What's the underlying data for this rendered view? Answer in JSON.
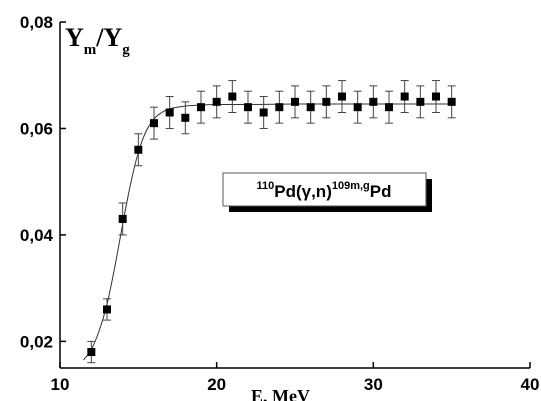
{
  "chart_data": {
    "type": "scatter",
    "title": "",
    "xlabel": "E, MeV",
    "ylabel": {
      "main": "Y",
      "sub_m": "m",
      "slash": "/",
      "main2": "Y",
      "sub_g": "g"
    },
    "xlim": [
      10,
      40
    ],
    "ylim": [
      0.015,
      0.08
    ],
    "x_ticks": [
      10,
      20,
      30,
      40
    ],
    "x_tick_labels": [
      "10",
      "20",
      "30",
      "40"
    ],
    "y_ticks": [
      0.02,
      0.04,
      0.06,
      0.08
    ],
    "y_tick_labels": [
      "0,02",
      "0,04",
      "0,06",
      "0,08"
    ],
    "grid": false,
    "annotation": {
      "mass_in": "110",
      "el_in": "Pd",
      "reaction": "(γ,n)",
      "mass_out": "109m,g",
      "el_out": "Pd"
    },
    "series": [
      {
        "marker": "square",
        "color": "#000000",
        "x": [
          12,
          13,
          14,
          15,
          16,
          17,
          18,
          19,
          20,
          21,
          22,
          23,
          24,
          25,
          26,
          27,
          28,
          29,
          30,
          31,
          32,
          33,
          34,
          35
        ],
        "y": [
          0.018,
          0.026,
          0.043,
          0.056,
          0.061,
          0.063,
          0.062,
          0.064,
          0.065,
          0.066,
          0.064,
          0.063,
          0.064,
          0.065,
          0.064,
          0.065,
          0.066,
          0.064,
          0.065,
          0.064,
          0.066,
          0.065,
          0.066,
          0.065
        ],
        "error": [
          0.002,
          0.002,
          0.003,
          0.003,
          0.003,
          0.003,
          0.003,
          0.003,
          0.003,
          0.003,
          0.003,
          0.003,
          0.003,
          0.003,
          0.003,
          0.003,
          0.003,
          0.003,
          0.003,
          0.003,
          0.003,
          0.003,
          0.003,
          0.003
        ]
      }
    ],
    "fit_curve": {
      "x": [
        11.5,
        12,
        12.5,
        13,
        13.5,
        14,
        14.5,
        15,
        15.5,
        16,
        16.5,
        17,
        18,
        19,
        20,
        22,
        25,
        30,
        35
      ],
      "y": [
        0.0165,
        0.0185,
        0.022,
        0.027,
        0.034,
        0.042,
        0.0495,
        0.0555,
        0.0595,
        0.0618,
        0.063,
        0.0637,
        0.0642,
        0.0644,
        0.0645,
        0.0645,
        0.0646,
        0.0646,
        0.0646
      ]
    }
  }
}
